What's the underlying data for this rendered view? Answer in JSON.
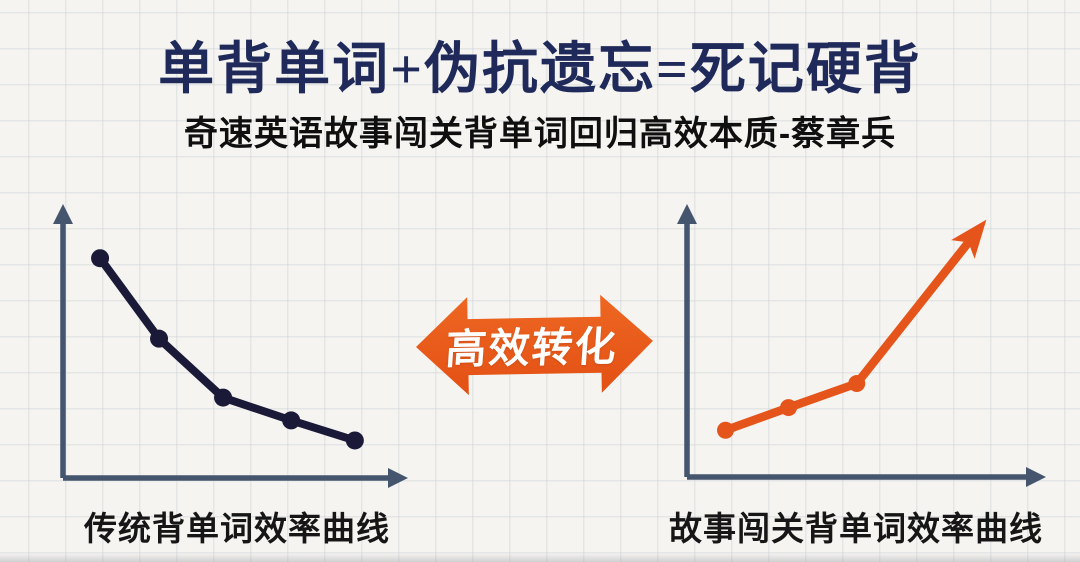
{
  "header": {
    "title": "单背单词+伪抗遗忘=死记硬背",
    "subtitle": "奇速英语故事闯关背单词回归高效本质-蔡章兵"
  },
  "transform_arrow": {
    "label": "高效转化",
    "color_top": "#ee6722",
    "color_bottom": "#e35014"
  },
  "colors": {
    "background": "#f5f4f1",
    "grid_line": "#dfe2e5",
    "title_navy": "#1f2a5a",
    "subtitle_black": "#0f0f0f",
    "axis": "#45556e",
    "traditional_line": "#1a1a38",
    "story_line": "#e5551b",
    "arrow_label_white": "#ffffff"
  },
  "chart_data": [
    {
      "type": "line",
      "title": "传统背单词效率曲线",
      "trend": "decreasing",
      "xlabel": "",
      "ylabel": "",
      "tick_labels_visible": false,
      "grid": false,
      "x_range": [
        0,
        100
      ],
      "y_range": [
        0,
        100
      ],
      "x_rel": [
        11,
        28.5,
        47.5,
        67.7,
        86.6
      ],
      "y_rel": [
        82,
        52,
        30,
        21.5,
        14
      ],
      "color": "#1a1a38",
      "marker_color": "#1a1a38",
      "marker_radius": 9,
      "marker_count": 5,
      "arrow_end": false
    },
    {
      "type": "line",
      "title": "故事闯关背单词效率曲线",
      "trend": "increasing",
      "xlabel": "",
      "ylabel": "",
      "tick_labels_visible": false,
      "grid": false,
      "x_range": [
        0,
        100
      ],
      "y_range": [
        0,
        100
      ],
      "x_rel": [
        11,
        29,
        48.5,
        82
      ],
      "y_rel": [
        17.5,
        26,
        35,
        90.5
      ],
      "color": "#e5551b",
      "marker_color": "#e5551b",
      "marker_radius": 8.5,
      "marker_count": 3,
      "arrow_end": true
    }
  ]
}
